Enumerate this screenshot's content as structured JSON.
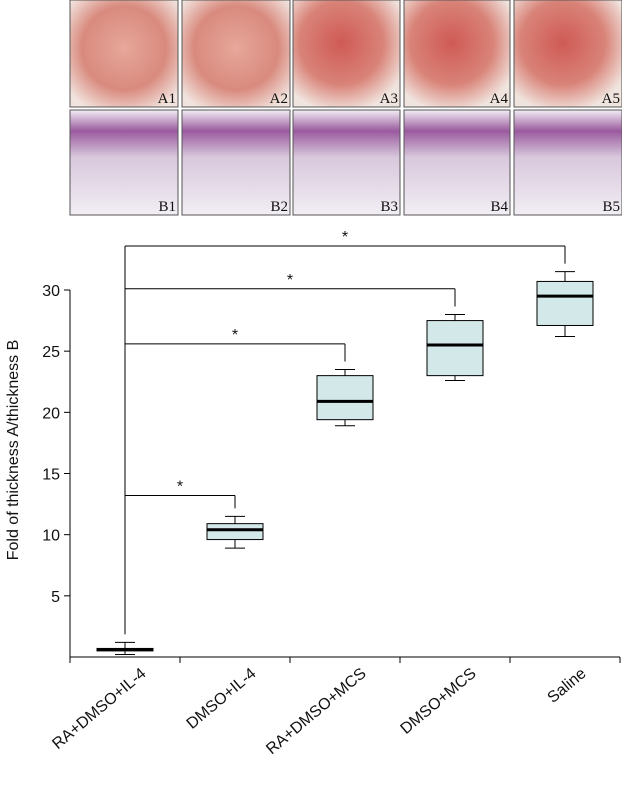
{
  "photos": {
    "row_a_labels": [
      "A1",
      "A2",
      "A3",
      "A4",
      "A5"
    ],
    "row_b_labels": [
      "B1",
      "B2",
      "B3",
      "B4",
      "B5"
    ]
  },
  "chart_data": {
    "type": "box",
    "y_label": "Fold of thickness A/thickness B",
    "categories": [
      "RA+DMSO+IL-4",
      "DMSO+IL-4",
      "RA+DMSO+MCS",
      "DMSO+MCS",
      "Saline"
    ],
    "boxes": [
      {
        "min": 0.2,
        "q1": 0.5,
        "median": 0.6,
        "q3": 0.7,
        "max": 1.2
      },
      {
        "min": 8.9,
        "q1": 9.6,
        "median": 10.4,
        "q3": 10.9,
        "max": 11.5
      },
      {
        "min": 18.9,
        "q1": 19.4,
        "median": 20.9,
        "q3": 23.0,
        "max": 23.5
      },
      {
        "min": 22.6,
        "q1": 23.0,
        "median": 25.5,
        "q3": 27.5,
        "max": 28.0
      },
      {
        "min": 26.2,
        "q1": 27.1,
        "median": 29.5,
        "q3": 30.7,
        "max": 31.5
      }
    ],
    "color": "#d3e8e8",
    "ylim": [
      0,
      30
    ],
    "yticks": [
      5,
      10,
      15,
      20,
      25,
      30
    ],
    "brackets": [
      {
        "label": "*",
        "y": 13.2
      },
      {
        "label": "*",
        "y": 25.6
      },
      {
        "label": "*",
        "y": 30.1
      },
      {
        "label": "*",
        "y": 33.6
      }
    ]
  }
}
